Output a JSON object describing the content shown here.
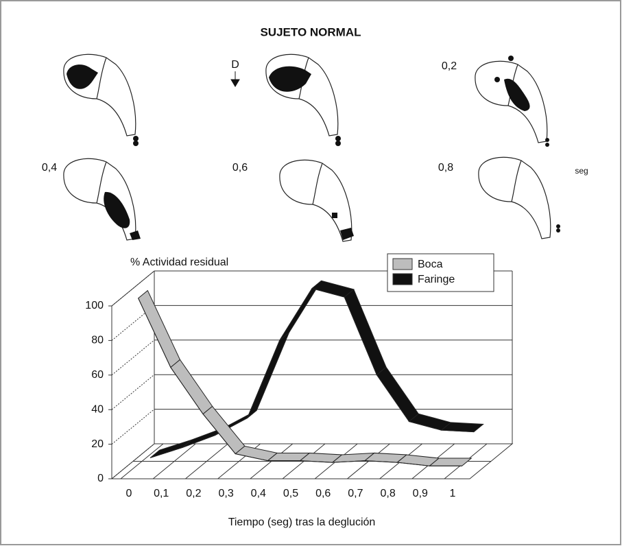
{
  "figure": {
    "frame_labels": [
      "D",
      "0,2",
      "0,4",
      "0,6",
      "0,8"
    ],
    "unit": "seg"
  },
  "chart_data": {
    "type": "ribbon3d",
    "title": "SUJETO NORMAL",
    "y_label": "% Actividad residual",
    "x_label": "Tiempo (seg) tras la deglución",
    "categories": [
      "0",
      "0,1",
      "0,2",
      "0,3",
      "0,4",
      "0,5",
      "0,6",
      "0,7",
      "0,8",
      "0,9",
      "1"
    ],
    "series": [
      {
        "name": "Boca",
        "color": "#bdbdbd",
        "values": [
          100,
          60,
          33,
          10,
          6,
          6,
          5,
          6,
          5,
          3,
          3
        ]
      },
      {
        "name": "Faringe",
        "color": "#111111",
        "values": [
          2,
          8,
          15,
          25,
          70,
          100,
          95,
          50,
          23,
          18,
          17
        ]
      }
    ],
    "ylim": [
      0,
      100
    ],
    "yticks": [
      0,
      20,
      40,
      60,
      80,
      100
    ],
    "grid": true,
    "legend": "upper right"
  }
}
